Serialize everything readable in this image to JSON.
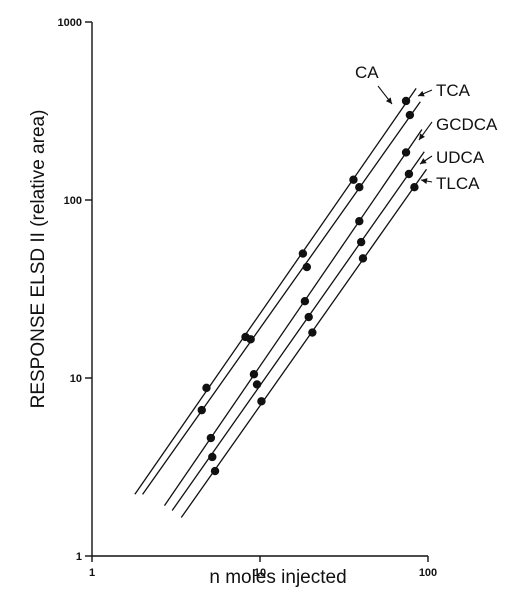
{
  "chart_data": {
    "type": "scatter",
    "title": "",
    "xlabel": "n moles injected",
    "ylabel": "RESPONSE ELSD II (relative area)",
    "xscale": "log",
    "yscale": "log",
    "xlim": [
      1,
      100
    ],
    "ylim": [
      1,
      1000
    ],
    "x_ticks": [
      "1",
      "10",
      "100"
    ],
    "y_ticks": [
      "1",
      "10",
      "100",
      "1000"
    ],
    "grid": false,
    "legend": "inline labels with arrows at upper-right ends of lines",
    "series": [
      {
        "name": "CA",
        "line_range": [
          1.8,
          85
        ],
        "x": [
          4.8,
          8.2,
          18,
          36,
          74
        ],
        "y": [
          8.8,
          17,
          50,
          130,
          360
        ]
      },
      {
        "name": "TCA",
        "line_range": [
          2.0,
          90
        ],
        "x": [
          4.5,
          8.8,
          19,
          39,
          78
        ],
        "y": [
          6.6,
          16.5,
          42,
          118,
          300
        ]
      },
      {
        "name": "GCDCA",
        "line_range": [
          2.7,
          92
        ],
        "x": [
          5.1,
          9.2,
          18.5,
          39,
          74
        ],
        "y": [
          4.6,
          10.5,
          27,
          76,
          185
        ]
      },
      {
        "name": "UDCA",
        "line_range": [
          3.0,
          95
        ],
        "x": [
          5.2,
          9.6,
          19.5,
          40,
          77
        ],
        "y": [
          3.6,
          9.2,
          22,
          58,
          140
        ]
      },
      {
        "name": "TLCA",
        "line_range": [
          3.4,
          98
        ],
        "x": [
          5.4,
          10.2,
          20.5,
          41,
          83
        ],
        "y": [
          3.0,
          7.4,
          18,
          47,
          118
        ]
      }
    ]
  }
}
